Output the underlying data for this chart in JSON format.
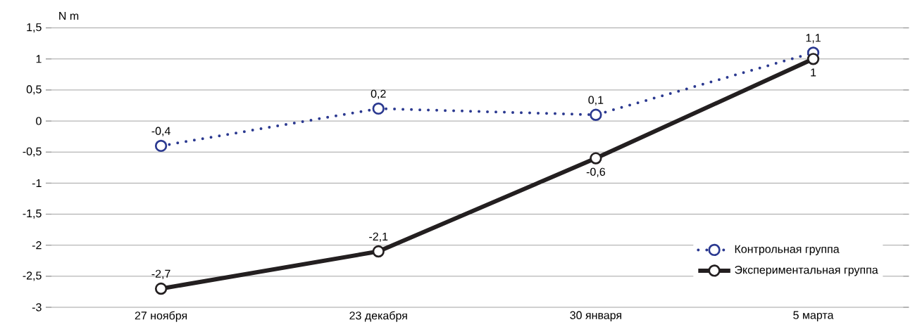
{
  "chart_data": {
    "type": "line",
    "ylabel": "N m",
    "categories": [
      "27 ноября",
      "23 декабря",
      "30 января",
      "5 марта"
    ],
    "series": [
      {
        "name": "Контрольная группа",
        "color": "#2b3990",
        "line_style": "dotted",
        "values": [
          -0.4,
          0.2,
          0.1,
          1.1
        ],
        "value_labels": [
          "-0,4",
          "0,2",
          "0,1",
          "1,1"
        ]
      },
      {
        "name": "Экспериментальная группа",
        "color": "#231f20",
        "line_style": "solid",
        "values": [
          -2.7,
          -2.1,
          -0.6,
          1
        ],
        "value_labels": [
          "-2,7",
          "-2,1",
          "-0,6",
          "1"
        ]
      }
    ],
    "ylim": [
      -3,
      1.5
    ],
    "yticks": [
      {
        "value": -3,
        "label": "-3"
      },
      {
        "value": -2.5,
        "label": "-2,5"
      },
      {
        "value": -2,
        "label": "-2"
      },
      {
        "value": -1.5,
        "label": "-1,5"
      },
      {
        "value": -1,
        "label": "-1"
      },
      {
        "value": -0.5,
        "label": "-0,5"
      },
      {
        "value": 0,
        "label": "0"
      },
      {
        "value": 0.5,
        "label": "0,5"
      },
      {
        "value": 1,
        "label": "1"
      },
      {
        "value": 1.5,
        "label": "1,5"
      }
    ],
    "grid": "y",
    "legend": "bottom right",
    "marker": "circle"
  }
}
